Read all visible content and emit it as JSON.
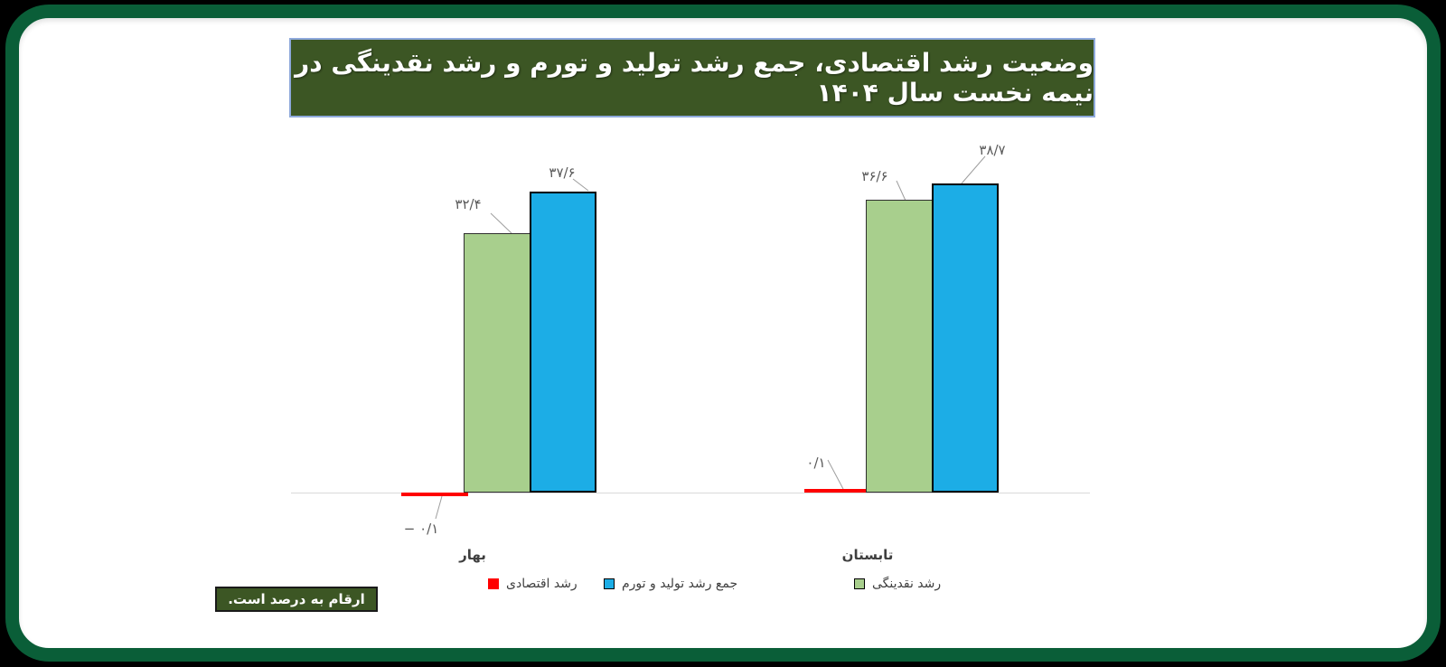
{
  "title": {
    "text": "وضعیت رشد اقتصادی، جمع رشد تولید و تورم و رشد نقدینگی در نیمه نخست سال ۱۴۰۴",
    "bg_color": "#3c5624",
    "border_color": "#8ea9db",
    "text_color": "#ffffff"
  },
  "note": {
    "text": "ارقام به درصد است.",
    "bg_color": "#3c5624",
    "border_color": "#1a1a1a",
    "text_color": "#ffffff"
  },
  "frame": {
    "border_color": "#0a5e38",
    "inner_background": "#ffffff",
    "outer_background": "#000000"
  },
  "chart_data": {
    "type": "bar",
    "categories": [
      "بهار",
      "تابستان"
    ],
    "series": [
      {
        "name": "رشد اقتصادی",
        "color": "#ff0000",
        "values": [
          -0.1,
          0.1
        ],
        "labels": [
          "− ۰/۱",
          "۰/۱"
        ]
      },
      {
        "name": "رشد نقدینگی",
        "color": "#a8cf8d",
        "values": [
          32.4,
          36.6
        ],
        "labels": [
          "۳۲/۴",
          "۳۶/۶"
        ]
      },
      {
        "name": "جمع رشد تولید و تورم",
        "color": "#1cade6",
        "values": [
          37.6,
          38.7
        ],
        "labels": [
          "۳۷/۶",
          "۳۸/۷"
        ]
      }
    ],
    "legend": [
      {
        "label": "رشد اقتصادی",
        "color": "#ff0000"
      },
      {
        "label": "جمع رشد تولید و تورم",
        "color": "#1cade6"
      },
      {
        "label": "رشد نقدینگی",
        "color": "#a8cf8d"
      }
    ],
    "title": "وضعیت رشد اقتصادی، جمع رشد تولید و تورم و رشد نقدینگی در نیمه نخست سال ۱۴۰۴",
    "xlabel": "",
    "ylabel": "",
    "ylim": [
      -2,
      42
    ],
    "grid": false,
    "legend_position": "bottom",
    "axis_color": "#d9d9d9",
    "data_label_color": "#595959"
  }
}
